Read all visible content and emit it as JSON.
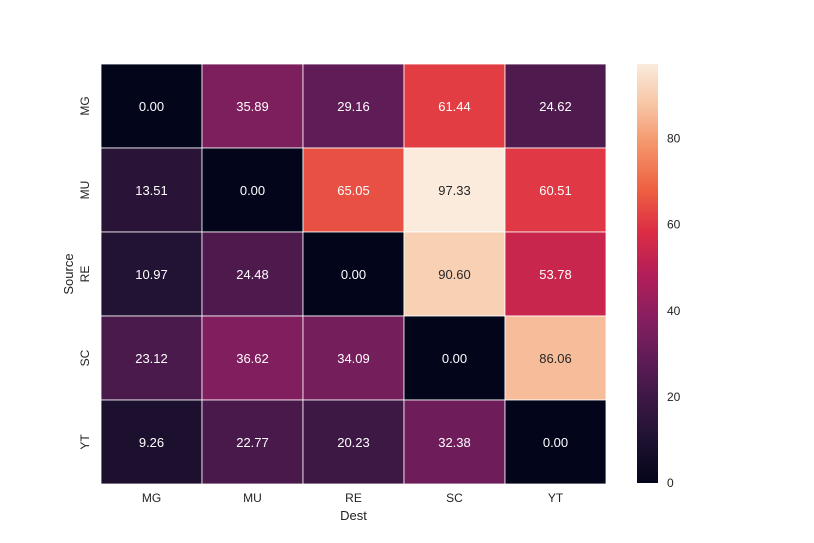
{
  "chart_data": {
    "type": "heatmap",
    "title": "",
    "xlabel": "Dest",
    "ylabel": "Source",
    "x_categories": [
      "MG",
      "MU",
      "RE",
      "SC",
      "YT"
    ],
    "y_categories": [
      "MG",
      "MU",
      "RE",
      "SC",
      "YT"
    ],
    "values": [
      [
        0.0,
        35.89,
        29.16,
        61.44,
        24.62
      ],
      [
        13.51,
        0.0,
        65.05,
        97.33,
        60.51
      ],
      [
        10.97,
        24.48,
        0.0,
        90.6,
        53.78
      ],
      [
        23.12,
        36.62,
        34.09,
        0.0,
        86.06
      ],
      [
        9.26,
        22.77,
        20.23,
        32.38,
        0.0
      ]
    ],
    "value_format": "0.00",
    "colormap": "rocket",
    "colorbar": {
      "range": [
        0,
        97.33
      ],
      "ticks": [
        0,
        20,
        40,
        60,
        80
      ]
    }
  }
}
